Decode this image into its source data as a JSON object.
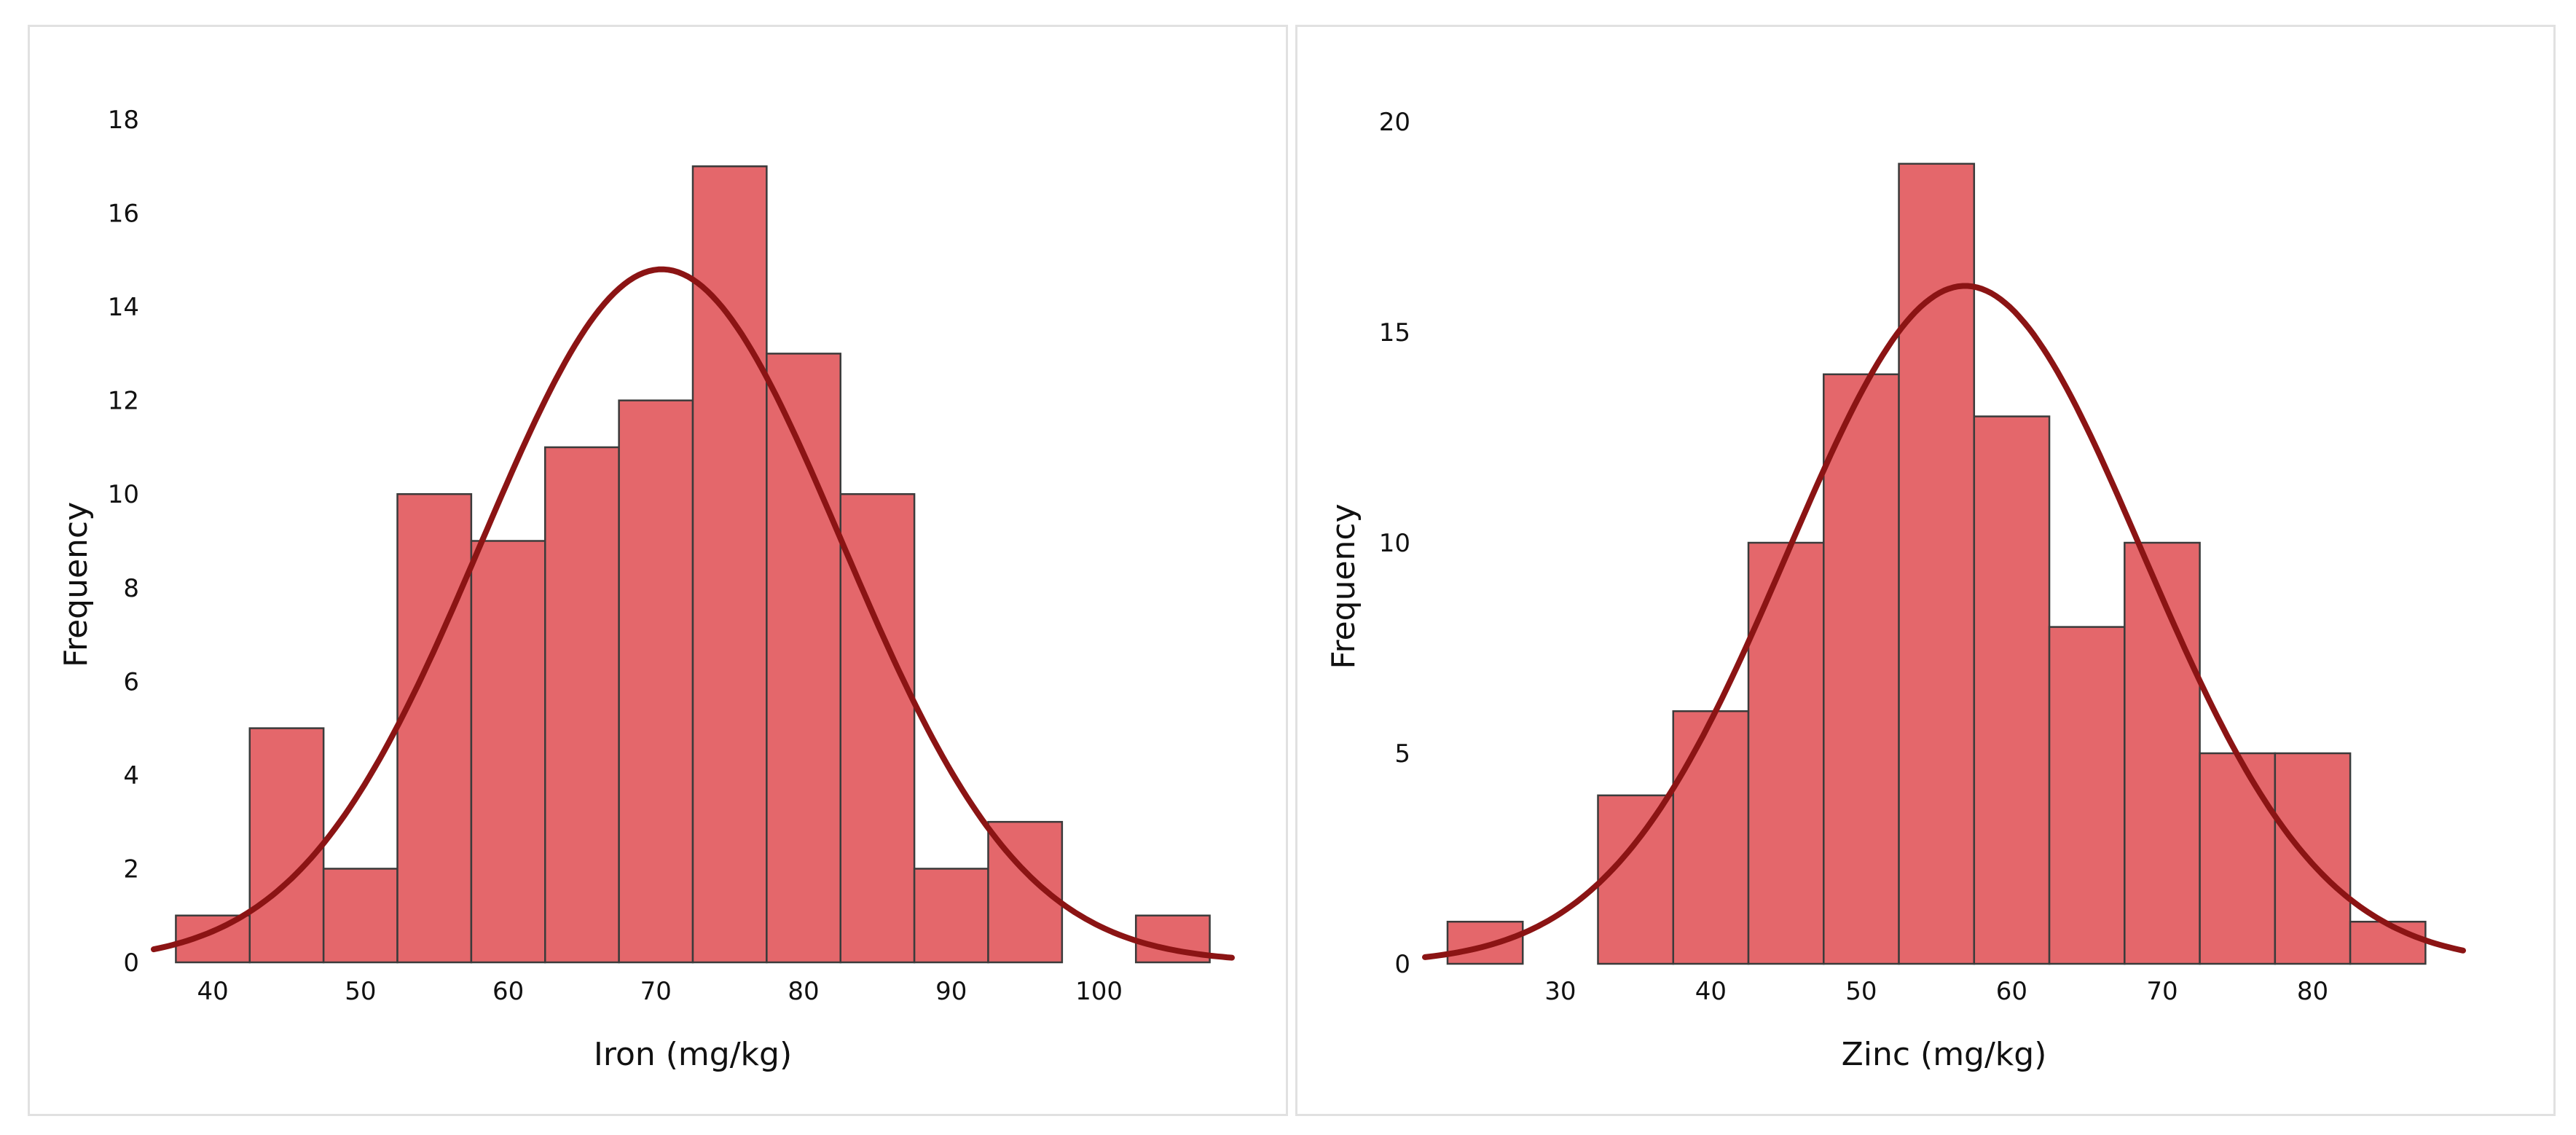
{
  "colors": {
    "bar_fill": "#e4676b",
    "bar_outline": "#3b3b3b",
    "curve": "#8b1414",
    "panel_border": "#e1e1e1"
  },
  "chart_data": [
    {
      "type": "bar",
      "subtype": "histogram_with_normal_curve",
      "title": "",
      "xlabel": "Iron (mg/kg)",
      "ylabel": "Frequency",
      "bin_width": 5,
      "bin_starts": [
        37.5,
        42.5,
        47.5,
        52.5,
        57.5,
        62.5,
        67.5,
        72.5,
        77.5,
        82.5,
        87.5,
        92.5,
        97.5,
        102.5
      ],
      "values": [
        1,
        5,
        2,
        10,
        9,
        11,
        12,
        17,
        13,
        10,
        2,
        3,
        0,
        1
      ],
      "xlim": [
        36,
        109
      ],
      "ylim": [
        0,
        18
      ],
      "xticks": [
        "40",
        "50",
        "60",
        "70",
        "80",
        "90",
        "100"
      ],
      "yticks": [
        "0",
        "2",
        "4",
        "6",
        "8",
        "10",
        "12",
        "14",
        "16",
        "18"
      ],
      "normal_curve": {
        "mean": 70.4,
        "sd": 12.2,
        "peak": 14.8
      },
      "grid": false,
      "legend": "none"
    },
    {
      "type": "bar",
      "subtype": "histogram_with_normal_curve",
      "title": "",
      "xlabel": "Zinc (mg/kg)",
      "ylabel": "Frequency",
      "bin_width": 5,
      "bin_starts": [
        22.5,
        27.5,
        32.5,
        37.5,
        42.5,
        47.5,
        52.5,
        57.5,
        62.5,
        67.5,
        72.5,
        77.5,
        82.5
      ],
      "values": [
        1,
        0,
        4,
        6,
        10,
        14,
        19,
        13,
        8,
        10,
        5,
        5,
        1
      ],
      "xlim": [
        21,
        90
      ],
      "ylim": [
        0,
        20
      ],
      "xticks": [
        "30",
        "40",
        "50",
        "60",
        "70",
        "80"
      ],
      "yticks": [
        "0",
        "5",
        "10",
        "15",
        "20"
      ],
      "normal_curve": {
        "mean": 56.9,
        "sd": 11.8,
        "peak": 16.1
      },
      "grid": false,
      "legend": "none"
    }
  ]
}
